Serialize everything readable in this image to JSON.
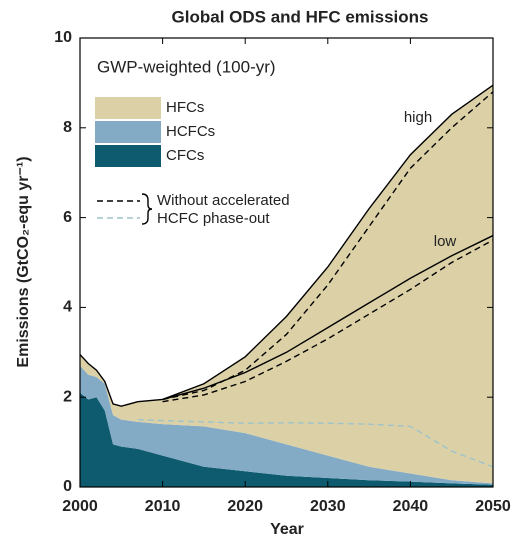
{
  "chart_data": {
    "type": "stacked_area",
    "title": "Global ODS and HFC emissions",
    "subtitle": "GWP-weighted (100-yr)",
    "xlabel": "Year",
    "ylabel": "Emissions (GtCO₂-equ yr⁻¹)",
    "x": [
      2000,
      2001,
      2002,
      2003,
      2004,
      2005,
      2007,
      2010,
      2015,
      2020,
      2025,
      2030,
      2035,
      2040,
      2045,
      2050
    ],
    "xlim": [
      2000,
      2050
    ],
    "xticks": [
      2000,
      2010,
      2020,
      2030,
      2040,
      2050
    ],
    "ylim": [
      0,
      10
    ],
    "yticks": [
      0,
      2,
      4,
      6,
      8,
      10
    ],
    "series": [
      {
        "name": "CFCs",
        "color": "#0e5b6f",
        "values": [
          2.1,
          1.95,
          2.0,
          1.7,
          0.95,
          0.9,
          0.85,
          0.7,
          0.45,
          0.35,
          0.25,
          0.2,
          0.15,
          0.12,
          0.08,
          0.05
        ]
      },
      {
        "name": "HCFCs",
        "color": "#84abc6",
        "values": [
          0.6,
          0.55,
          0.45,
          0.6,
          0.65,
          0.6,
          0.6,
          0.7,
          0.9,
          0.85,
          0.7,
          0.5,
          0.3,
          0.18,
          0.07,
          0.03
        ]
      },
      {
        "name": "HFCs",
        "color": "#dcd1a6",
        "values": [
          0.25,
          0.25,
          0.15,
          0.05,
          0.25,
          0.3,
          0.45,
          0.55,
          0.95,
          1.7,
          2.85,
          4.2,
          5.75,
          7.1,
          8.15,
          8.87
        ]
      }
    ],
    "lines": [
      {
        "name": "high",
        "color": "#000000",
        "dashed": false,
        "values": [
          2.95,
          2.75,
          2.6,
          2.35,
          1.85,
          1.8,
          1.9,
          1.95,
          2.3,
          2.9,
          3.8,
          4.9,
          6.2,
          7.4,
          8.3,
          8.95
        ]
      },
      {
        "name": "low",
        "color": "#000000",
        "dashed": false,
        "values": [
          null,
          null,
          null,
          null,
          null,
          null,
          null,
          1.95,
          2.2,
          2.55,
          3.0,
          3.55,
          4.1,
          4.65,
          5.15,
          5.6
        ]
      },
      {
        "color": "#000000",
        "dashed": true,
        "values": [
          null,
          null,
          null,
          null,
          null,
          null,
          null,
          1.95,
          2.15,
          2.6,
          3.4,
          4.5,
          5.8,
          7.1,
          8.0,
          8.8
        ]
      },
      {
        "color": "#000000",
        "dashed": true,
        "values": [
          null,
          null,
          null,
          null,
          null,
          null,
          null,
          1.9,
          2.05,
          2.35,
          2.8,
          3.3,
          3.85,
          4.4,
          5.0,
          5.5
        ]
      },
      {
        "color": "#9ec3cc",
        "dashed": true,
        "values": [
          null,
          null,
          null,
          null,
          null,
          null,
          1.5,
          1.48,
          1.45,
          1.42,
          1.43,
          1.42,
          1.4,
          1.35,
          0.8,
          0.45
        ]
      }
    ],
    "annotation": [
      "Without accelerated",
      "HCFC phase-out"
    ]
  }
}
